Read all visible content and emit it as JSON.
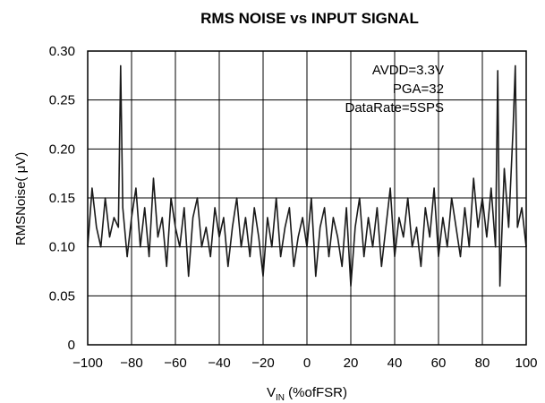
{
  "chart_data": {
    "type": "line",
    "title": "RMS NOISE vs INPUT SIGNAL",
    "xlabel": {
      "main": "V",
      "sub": "IN",
      "rest": " (%ofFSR)"
    },
    "ylabel": "RMSNoise(   μV)",
    "xlim": [
      -100,
      100
    ],
    "ylim": [
      0,
      0.3
    ],
    "xticks": [
      "−100",
      "−80",
      "−60",
      "−40",
      "−20",
      "0",
      "20",
      "40",
      "60",
      "80",
      "100"
    ],
    "yticks": [
      "0",
      "0.05",
      "0.10",
      "0.15",
      "0.20",
      "0.25",
      "0.30"
    ],
    "grid": true,
    "annotations": [
      "AVDD=3.3V",
      "PGA=32",
      "DataRate=5SPS"
    ],
    "series": [
      {
        "x": [
          -100,
          -98,
          -96,
          -94,
          -92,
          -90,
          -88,
          -86,
          -85,
          -84,
          -82,
          -80,
          -78,
          -76,
          -74,
          -72,
          -70,
          -68,
          -66,
          -64,
          -62,
          -60,
          -58,
          -56,
          -54,
          -52,
          -50,
          -48,
          -46,
          -44,
          -42,
          -40,
          -38,
          -36,
          -34,
          -32,
          -30,
          -28,
          -26,
          -24,
          -22,
          -20,
          -18,
          -16,
          -14,
          -12,
          -10,
          -8,
          -6,
          -4,
          -2,
          0,
          2,
          4,
          6,
          8,
          10,
          12,
          14,
          16,
          18,
          20,
          22,
          24,
          26,
          28,
          30,
          32,
          34,
          36,
          38,
          40,
          42,
          44,
          46,
          48,
          50,
          52,
          54,
          56,
          58,
          60,
          62,
          64,
          66,
          68,
          70,
          72,
          74,
          76,
          78,
          80,
          82,
          84,
          86,
          87,
          88,
          90,
          92,
          94,
          95,
          96,
          98,
          100
        ],
        "y": [
          0.1,
          0.16,
          0.12,
          0.1,
          0.15,
          0.11,
          0.13,
          0.12,
          0.285,
          0.14,
          0.09,
          0.13,
          0.16,
          0.1,
          0.14,
          0.09,
          0.17,
          0.11,
          0.13,
          0.08,
          0.15,
          0.12,
          0.1,
          0.14,
          0.07,
          0.13,
          0.15,
          0.1,
          0.12,
          0.09,
          0.14,
          0.11,
          0.13,
          0.08,
          0.12,
          0.15,
          0.1,
          0.13,
          0.09,
          0.14,
          0.11,
          0.07,
          0.13,
          0.1,
          0.15,
          0.09,
          0.12,
          0.14,
          0.08,
          0.11,
          0.13,
          0.1,
          0.15,
          0.07,
          0.12,
          0.14,
          0.09,
          0.13,
          0.11,
          0.08,
          0.14,
          0.06,
          0.12,
          0.15,
          0.09,
          0.13,
          0.1,
          0.14,
          0.08,
          0.12,
          0.16,
          0.09,
          0.13,
          0.11,
          0.15,
          0.1,
          0.12,
          0.08,
          0.14,
          0.11,
          0.16,
          0.09,
          0.13,
          0.1,
          0.15,
          0.12,
          0.09,
          0.14,
          0.1,
          0.17,
          0.12,
          0.15,
          0.11,
          0.16,
          0.1,
          0.28,
          0.06,
          0.18,
          0.12,
          0.22,
          0.285,
          0.12,
          0.14,
          0.1
        ]
      }
    ]
  }
}
